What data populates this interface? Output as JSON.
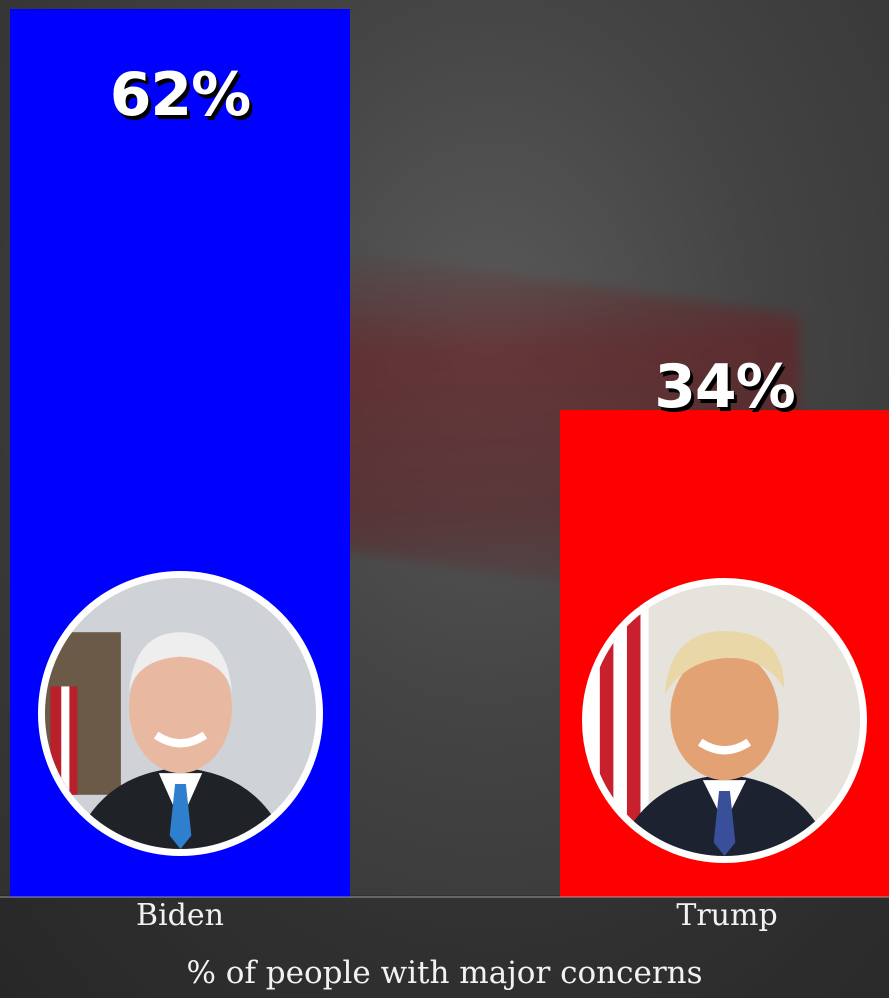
{
  "chart_data": {
    "type": "bar",
    "categories": [
      "Biden",
      "Trump"
    ],
    "values": [
      62,
      34
    ],
    "value_labels": [
      "62%",
      "34%"
    ],
    "xlabel": "% of people with major concerns",
    "ylabel": "",
    "ylim": [
      0,
      70
    ],
    "grid": false,
    "bar_colors": [
      "#0000ff",
      "#ff0000"
    ]
  }
}
